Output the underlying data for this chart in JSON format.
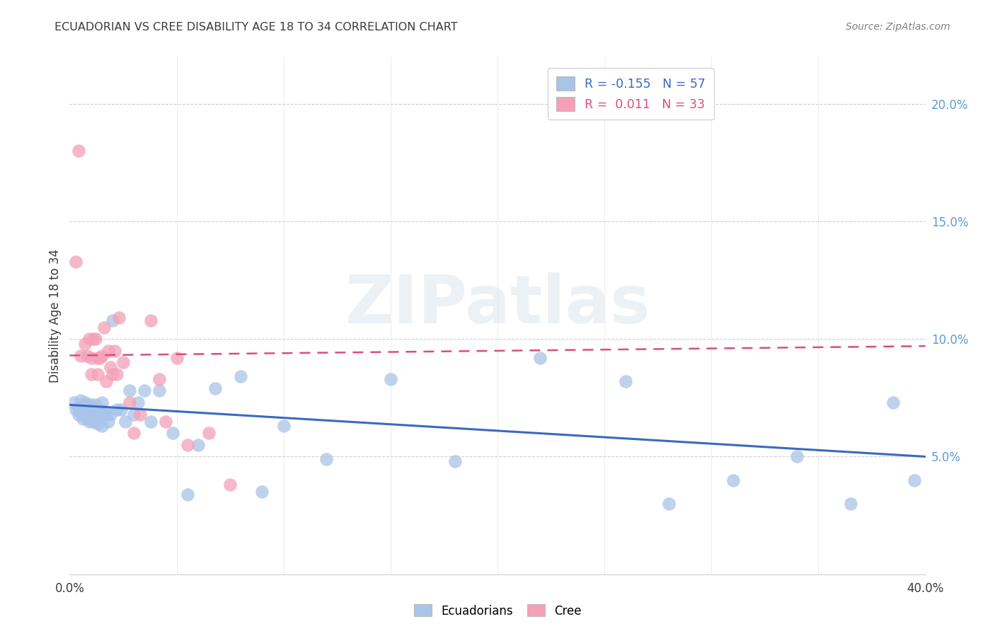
{
  "title": "ECUADORIAN VS CREE DISABILITY AGE 18 TO 34 CORRELATION CHART",
  "source": "Source: ZipAtlas.com",
  "ylabel": "Disability Age 18 to 34",
  "legend_label1": "Ecuadorians",
  "legend_label2": "Cree",
  "watermark": "ZIPatlas",
  "blue_color": "#a8c4e8",
  "pink_color": "#f4a0b8",
  "blue_line_color": "#3a6abf",
  "pink_line_color": "#d94f7a",
  "title_color": "#3a3a3a",
  "source_color": "#808080",
  "right_tick_color": "#5b9bd5",
  "xlim": [
    0.0,
    0.4
  ],
  "ylim": [
    0.0,
    0.22
  ],
  "yticks": [
    0.05,
    0.1,
    0.15,
    0.2
  ],
  "ytick_labels": [
    "5.0%",
    "10.0%",
    "15.0%",
    "20.0%"
  ],
  "xticks": [
    0.0,
    0.05,
    0.1,
    0.15,
    0.2,
    0.25,
    0.3,
    0.35,
    0.4
  ],
  "xtick_labels": [
    "0.0%",
    "",
    "",
    "",
    "",
    "",
    "",
    "",
    "40.0%"
  ],
  "blue_scatter_x": [
    0.002,
    0.003,
    0.004,
    0.004,
    0.005,
    0.005,
    0.006,
    0.006,
    0.007,
    0.007,
    0.008,
    0.008,
    0.009,
    0.009,
    0.01,
    0.01,
    0.011,
    0.011,
    0.012,
    0.012,
    0.013,
    0.013,
    0.014,
    0.015,
    0.015,
    0.016,
    0.017,
    0.018,
    0.019,
    0.02,
    0.022,
    0.024,
    0.026,
    0.028,
    0.03,
    0.032,
    0.035,
    0.038,
    0.042,
    0.048,
    0.055,
    0.06,
    0.068,
    0.08,
    0.09,
    0.1,
    0.12,
    0.15,
    0.18,
    0.22,
    0.26,
    0.28,
    0.31,
    0.34,
    0.365,
    0.385,
    0.395
  ],
  "blue_scatter_y": [
    0.073,
    0.07,
    0.071,
    0.068,
    0.074,
    0.069,
    0.072,
    0.066,
    0.073,
    0.069,
    0.072,
    0.066,
    0.069,
    0.065,
    0.072,
    0.068,
    0.07,
    0.065,
    0.072,
    0.067,
    0.068,
    0.064,
    0.07,
    0.073,
    0.063,
    0.069,
    0.068,
    0.065,
    0.068,
    0.108,
    0.07,
    0.07,
    0.065,
    0.078,
    0.068,
    0.073,
    0.078,
    0.065,
    0.078,
    0.06,
    0.034,
    0.055,
    0.079,
    0.084,
    0.035,
    0.063,
    0.049,
    0.083,
    0.048,
    0.092,
    0.082,
    0.03,
    0.04,
    0.05,
    0.03,
    0.073,
    0.04
  ],
  "pink_scatter_x": [
    0.003,
    0.004,
    0.005,
    0.007,
    0.008,
    0.009,
    0.01,
    0.01,
    0.011,
    0.012,
    0.013,
    0.013,
    0.014,
    0.015,
    0.016,
    0.017,
    0.018,
    0.019,
    0.02,
    0.021,
    0.022,
    0.023,
    0.025,
    0.028,
    0.03,
    0.033,
    0.038,
    0.042,
    0.045,
    0.05,
    0.055,
    0.065,
    0.075
  ],
  "pink_scatter_y": [
    0.133,
    0.18,
    0.093,
    0.098,
    0.093,
    0.1,
    0.092,
    0.085,
    0.1,
    0.1,
    0.092,
    0.085,
    0.092,
    0.093,
    0.105,
    0.082,
    0.095,
    0.088,
    0.085,
    0.095,
    0.085,
    0.109,
    0.09,
    0.073,
    0.06,
    0.068,
    0.108,
    0.083,
    0.065,
    0.092,
    0.055,
    0.06,
    0.038
  ],
  "blue_line_x": [
    0.0,
    0.4
  ],
  "blue_line_y": [
    0.072,
    0.05
  ],
  "pink_line_x": [
    0.0,
    0.4
  ],
  "pink_line_y": [
    0.093,
    0.097
  ]
}
